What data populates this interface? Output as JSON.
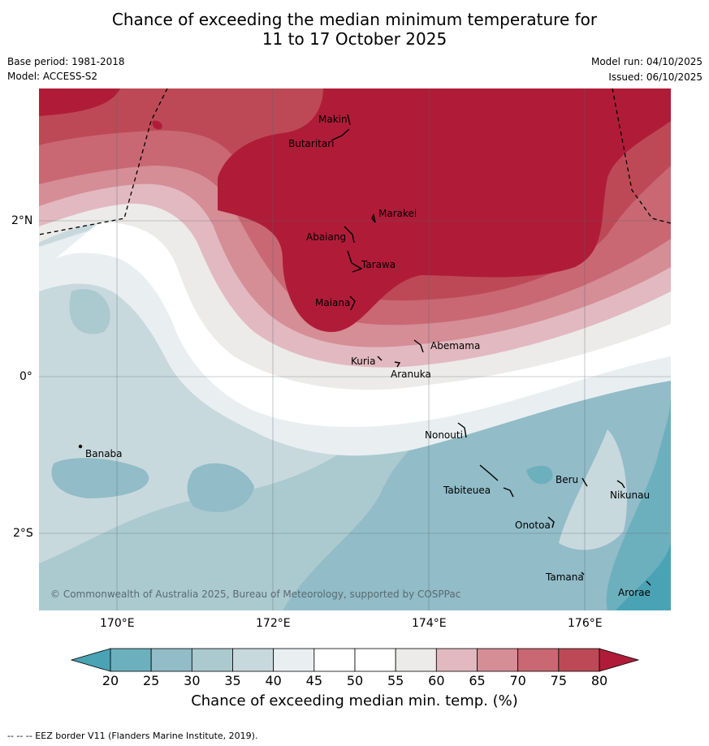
{
  "title": {
    "line1": "Chance of exceeding the median minimum temperature for",
    "line2": "11 to 17 October 2025"
  },
  "meta": {
    "base_period": "Base period: 1981-2018",
    "model": "Model: ACCESS-S2",
    "model_run": "Model run: 04/10/2025",
    "issued": "Issued: 06/10/2025"
  },
  "axes": {
    "lat": [
      "2°N",
      "0°",
      "2°S"
    ],
    "lon": [
      "170°E",
      "172°E",
      "174°E",
      "176°E"
    ]
  },
  "places": {
    "makin": "Makin",
    "butaritari": "Butaritari",
    "marakei": "Marakei",
    "abaiang": "Abaiang",
    "tarawa": "Tarawa",
    "maiana": "Maiana",
    "abemama": "Abemama",
    "kuria": "Kuria",
    "aranuka": "Aranuka",
    "banaba": "Banaba",
    "nonouti": "Nonouti",
    "tabiteuea": "Tabiteuea",
    "beru": "Beru",
    "nikunau": "Nikunau",
    "onotoa": "Onotoa",
    "tamana": "Tamana",
    "arorae": "Arorae"
  },
  "copyright": "© Commonwealth of Australia 2025, Bureau of Meteorology, supported by COSPPac",
  "colorbar": {
    "ticks": [
      "20",
      "25",
      "30",
      "35",
      "40",
      "45",
      "50",
      "55",
      "60",
      "65",
      "70",
      "75",
      "80"
    ],
    "colors": [
      "#4aa3b5",
      "#6cb0bd",
      "#91bcc8",
      "#abcad0",
      "#c8d9de",
      "#e9eff1",
      "#ffffff",
      "#ffffff",
      "#ecebea",
      "#e2b9c0",
      "#d58d96",
      "#c96873",
      "#bd4957",
      "#b01c38"
    ],
    "title": "Chance of exceeding median min. temp. (%)"
  },
  "footer": "--  --  -- EEZ border V11 (Flanders Marine Institute, 2019)."
}
